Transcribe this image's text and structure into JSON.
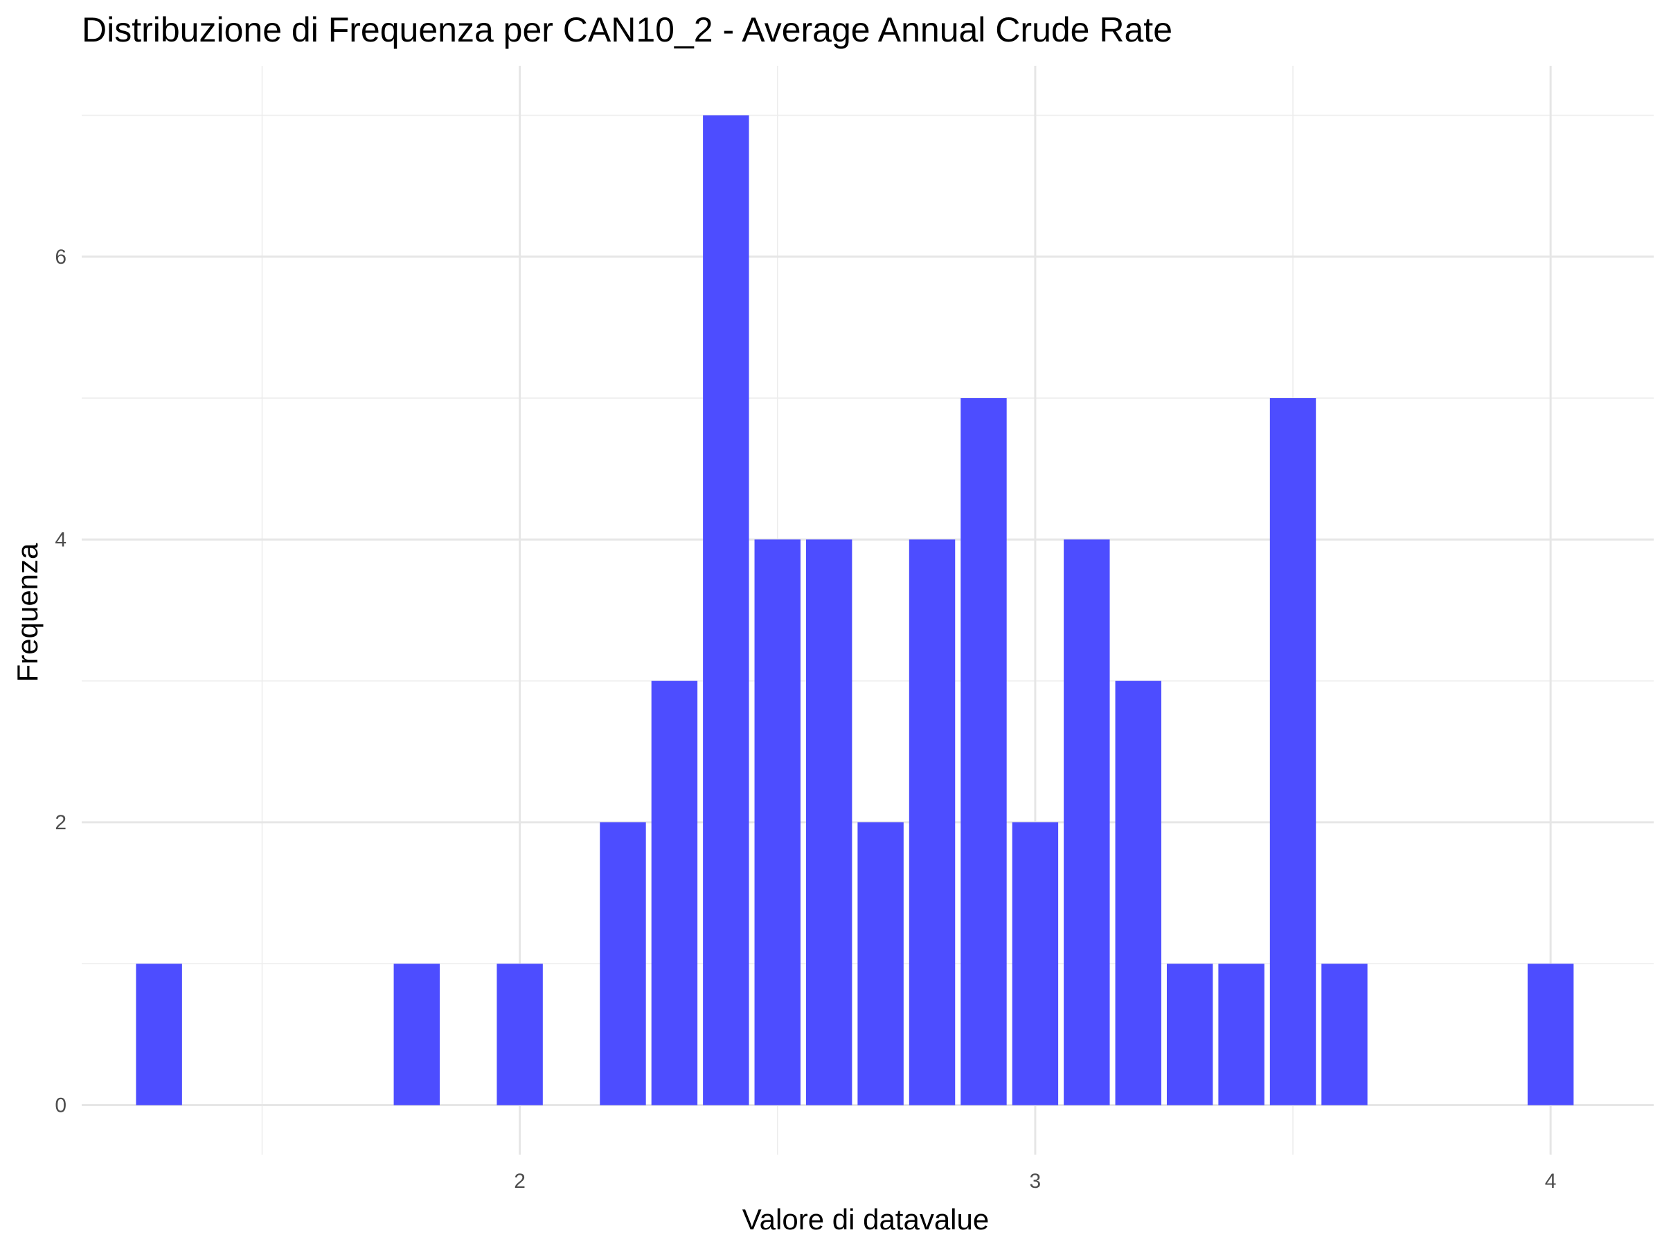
{
  "chart_data": {
    "type": "bar",
    "title": "Distribuzione di Frequenza per CAN10_2 - Average Annual Crude Rate",
    "xlabel": "Valore di datavalue",
    "ylabel": "Frequenza",
    "xlim": [
      1.15,
      4.2
    ],
    "ylim": [
      -0.35,
      7.35
    ],
    "x_ticks": [
      2,
      3,
      4
    ],
    "y_ticks": [
      0,
      2,
      4,
      6
    ],
    "bin_width": 0.1,
    "bins": [
      {
        "x": 1.3,
        "count": 1
      },
      {
        "x": 1.8,
        "count": 1
      },
      {
        "x": 2.0,
        "count": 1
      },
      {
        "x": 2.2,
        "count": 2
      },
      {
        "x": 2.3,
        "count": 3
      },
      {
        "x": 2.4,
        "count": 7
      },
      {
        "x": 2.5,
        "count": 4
      },
      {
        "x": 2.6,
        "count": 4
      },
      {
        "x": 2.7,
        "count": 2
      },
      {
        "x": 2.8,
        "count": 4
      },
      {
        "x": 2.9,
        "count": 5
      },
      {
        "x": 3.0,
        "count": 2
      },
      {
        "x": 3.1,
        "count": 4
      },
      {
        "x": 3.2,
        "count": 3
      },
      {
        "x": 3.3,
        "count": 1
      },
      {
        "x": 3.4,
        "count": 1
      },
      {
        "x": 3.5,
        "count": 5
      },
      {
        "x": 3.6,
        "count": 1
      },
      {
        "x": 4.0,
        "count": 1
      }
    ],
    "bar_color": "#4d4dff",
    "grid": true,
    "legend": "none"
  }
}
